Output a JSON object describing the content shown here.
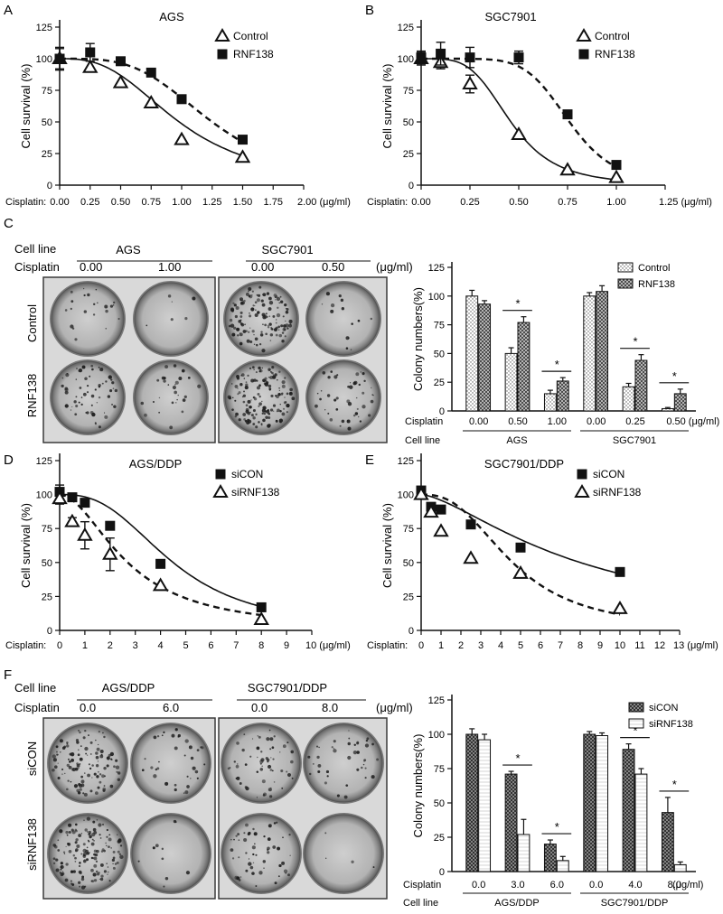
{
  "colors": {
    "ink": "#111111",
    "dish_outer": "#6f6f6f",
    "dish_mid": "#9a9a9a",
    "dish_inner": "#b9b9b9",
    "frame": "#3a3a3a"
  },
  "panels": {
    "A": {
      "letter": "A",
      "title": "AGS",
      "ylabel": "Cell survival  (%)",
      "x_prefix": "Cisplatin:",
      "yticks": [
        "0",
        "25",
        "50",
        "75",
        "100",
        "125"
      ],
      "xticks": [
        "0.00",
        "0.25",
        "0.50",
        "0.75",
        "1.00",
        "1.25",
        "1.50",
        "1.75",
        "2.00 (μg/ml)"
      ],
      "legend": [
        "Control",
        "RNF138"
      ]
    },
    "B": {
      "letter": "B",
      "title": "SGC7901",
      "ylabel": "Cell survival  (%)",
      "x_prefix": "Cisplatin:",
      "yticks": [
        "0",
        "25",
        "50",
        "75",
        "100",
        "125"
      ],
      "xticks": [
        "0.00",
        "0.25",
        "0.50",
        "0.75",
        "1.00",
        "1.25 (μg/ml)"
      ],
      "legend": [
        "Control",
        "RNF138"
      ]
    },
    "C": {
      "letter": "C",
      "cell_line_label": "Cell line",
      "cisplatin_label": "Cisplatin",
      "unit": "(μg/ml)",
      "groups": [
        {
          "name": "AGS",
          "doses": [
            "0.00",
            "1.00"
          ]
        },
        {
          "name": "SGC7901",
          "doses": [
            "0.00",
            "0.50"
          ]
        }
      ],
      "row_labels": [
        "Control",
        "RNF138"
      ],
      "bar": {
        "ylabel": "Colony numbers(%)",
        "yticks": [
          "0",
          "25",
          "50",
          "75",
          "100",
          "125"
        ],
        "legend": [
          "Control",
          "RNF138"
        ],
        "cisplatin_label": "Cisplatin",
        "cell_line_label": "Cell line",
        "doses": [
          "0.00",
          "0.50",
          "1.00",
          "0.00",
          "0.25",
          "0.50 (μg/ml)"
        ],
        "groups": [
          "AGS",
          "SGC7901"
        ],
        "star": "*"
      }
    },
    "D": {
      "letter": "D",
      "title": "AGS/DDP",
      "ylabel": "Cell survival  (%)",
      "x_prefix": "Cisplatin:",
      "yticks": [
        "0",
        "25",
        "50",
        "75",
        "100",
        "125"
      ],
      "xticks": [
        "0",
        "1",
        "2",
        "3",
        "4",
        "5",
        "6",
        "7",
        "8",
        "9",
        "10 (μg/ml)"
      ],
      "legend": [
        "siCON",
        "siRNF138"
      ]
    },
    "E": {
      "letter": "E",
      "title": "SGC7901/DDP",
      "ylabel": "Cell survival  (%)",
      "x_prefix": "Cisplatin:",
      "yticks": [
        "0",
        "25",
        "50",
        "75",
        "100",
        "125"
      ],
      "xticks": [
        "0",
        "1",
        "2",
        "3",
        "4",
        "5",
        "6",
        "7",
        "8",
        "9",
        "10",
        "11",
        "12",
        "13 (μg/ml)"
      ],
      "legend": [
        "siCON",
        "siRNF138"
      ]
    },
    "F": {
      "letter": "F",
      "cell_line_label": "Cell line",
      "cisplatin_label": "Cisplatin",
      "unit": "(μg/ml)",
      "groups": [
        {
          "name": "AGS/DDP",
          "doses": [
            "0.0",
            "6.0"
          ]
        },
        {
          "name": "SGC7901/DDP",
          "doses": [
            "0.0",
            "8.0"
          ]
        }
      ],
      "row_labels": [
        "siCON",
        "siRNF138"
      ],
      "bar": {
        "ylabel": "Colony numbers(%)",
        "yticks": [
          "0",
          "25",
          "50",
          "75",
          "100",
          "125"
        ],
        "legend": [
          "siCON",
          "siRNF138"
        ],
        "cisplatin_label": "Cisplatin",
        "cell_line_label": "Cell line",
        "doses": [
          "0.0",
          "3.0",
          "6.0",
          "0.0",
          "4.0",
          "8.0"
        ],
        "unit": "(μg/ml)",
        "groups": [
          "AGS/DDP",
          "SGC7901/DDP"
        ],
        "star": "*"
      }
    }
  },
  "chart_data": [
    {
      "type": "scatter",
      "panel": "A",
      "title": "AGS",
      "xlabel": "Cisplatin (μg/ml)",
      "ylabel": "Cell survival  (%)",
      "xlim": [
        0,
        2
      ],
      "ylim": [
        0,
        125
      ],
      "series": [
        {
          "name": "Control",
          "marker": "triangle-open",
          "fit": "solid",
          "points": [
            [
              0,
              100,
              8
            ],
            [
              0.25,
              93,
              0
            ],
            [
              0.5,
              81,
              0
            ],
            [
              0.75,
              65,
              0
            ],
            [
              1.0,
              36,
              0
            ],
            [
              1.5,
              22,
              0
            ]
          ],
          "fit_curve": {
            "top": 100,
            "bottom": 0,
            "ic50": 0.98,
            "hill": 2.8
          }
        },
        {
          "name": "RNF138",
          "marker": "square-filled",
          "fit": "dashed",
          "points": [
            [
              0,
              100,
              9
            ],
            [
              0.25,
              105,
              7
            ],
            [
              0.5,
              98,
              0
            ],
            [
              0.75,
              89,
              0
            ],
            [
              1.0,
              68,
              0
            ],
            [
              1.5,
              36,
              0
            ]
          ],
          "fit_curve": {
            "top": 100,
            "bottom": 0,
            "ic50": 1.25,
            "hill": 3.6
          }
        }
      ]
    },
    {
      "type": "scatter",
      "panel": "B",
      "title": "SGC7901",
      "xlabel": "Cisplatin (μg/ml)",
      "ylabel": "Cell survival  (%)",
      "xlim": [
        0,
        1.25
      ],
      "ylim": [
        0,
        125
      ],
      "series": [
        {
          "name": "Control",
          "marker": "triangle-open",
          "fit": "solid",
          "points": [
            [
              0,
              100,
              5
            ],
            [
              0.1,
              97,
              5
            ],
            [
              0.25,
              80,
              7
            ],
            [
              0.5,
              40,
              0
            ],
            [
              0.75,
              12,
              0
            ],
            [
              1.0,
              6,
              0
            ]
          ],
          "fit_curve": {
            "top": 100,
            "bottom": 0,
            "ic50": 0.46,
            "hill": 4.0
          }
        },
        {
          "name": "RNF138",
          "marker": "square-filled",
          "fit": "dashed",
          "points": [
            [
              0,
              101,
              5
            ],
            [
              0.1,
              104,
              9
            ],
            [
              0.25,
              101,
              8
            ],
            [
              0.5,
              101,
              5
            ],
            [
              0.75,
              56,
              0
            ],
            [
              1.0,
              16,
              0
            ]
          ],
          "fit_curve": {
            "top": 100,
            "bottom": 0,
            "ic50": 0.76,
            "hill": 6.5
          }
        }
      ]
    },
    {
      "type": "bar",
      "panel": "C",
      "ylabel": "Colony numbers(%)",
      "ylim": [
        0,
        125
      ],
      "categories": [
        "AGS 0.00",
        "AGS 0.50",
        "AGS 1.00",
        "SGC7901 0.00",
        "SGC7901 0.25",
        "SGC7901 0.50"
      ],
      "series": [
        {
          "name": "Control",
          "values": [
            100,
            50,
            15,
            100,
            21,
            2
          ],
          "errors": [
            5,
            5,
            3,
            3,
            3,
            1
          ]
        },
        {
          "name": "RNF138",
          "values": [
            93,
            77,
            26,
            104,
            44,
            15
          ],
          "errors": [
            3,
            5,
            3,
            5,
            5,
            4
          ]
        }
      ],
      "significance": [
        1,
        2,
        4,
        5
      ]
    },
    {
      "type": "scatter",
      "panel": "D",
      "title": "AGS/DDP",
      "xlabel": "Cisplatin (μg/ml)",
      "ylabel": "Cell survival  (%)",
      "xlim": [
        0,
        10
      ],
      "ylim": [
        0,
        125
      ],
      "series": [
        {
          "name": "siCON",
          "marker": "square-filled",
          "fit": "solid",
          "points": [
            [
              0,
              102,
              5
            ],
            [
              0.5,
              98,
              0
            ],
            [
              1,
              94,
              0
            ],
            [
              2,
              77,
              0
            ],
            [
              4,
              49,
              0
            ],
            [
              8,
              17,
              0
            ]
          ],
          "fit_curve": {
            "top": 100,
            "bottom": 0,
            "ic50": 4.5,
            "hill": 2.7
          }
        },
        {
          "name": "siRNF138",
          "marker": "triangle-open",
          "fit": "dashed",
          "points": [
            [
              0,
              97,
              4
            ],
            [
              0.5,
              80,
              3
            ],
            [
              1,
              70,
              10
            ],
            [
              2,
              56,
              12
            ],
            [
              4,
              33,
              0
            ],
            [
              8,
              8,
              0
            ]
          ],
          "fit_curve": {
            "top": 100,
            "bottom": 0,
            "ic50": 2.7,
            "hill": 1.9
          }
        }
      ]
    },
    {
      "type": "scatter",
      "panel": "E",
      "title": "SGC7901/DDP",
      "xlabel": "Cisplatin (μg/ml)",
      "ylabel": "Cell survival  (%)",
      "xlim": [
        0,
        13
      ],
      "ylim": [
        0,
        125
      ],
      "series": [
        {
          "name": "siCON",
          "marker": "square-filled",
          "fit": "solid",
          "points": [
            [
              0,
              103,
              3
            ],
            [
              0.5,
              91,
              0
            ],
            [
              1,
              89,
              0
            ],
            [
              2.5,
              78,
              0
            ],
            [
              5,
              61,
              0
            ],
            [
              10,
              43,
              0
            ]
          ],
          "fit_curve": {
            "top": 100,
            "bottom": 0,
            "ic50": 8.0,
            "hill": 1.5
          }
        },
        {
          "name": "siRNF138",
          "marker": "triangle-open",
          "fit": "dashed",
          "points": [
            [
              0,
              100,
              3
            ],
            [
              0.5,
              87,
              0
            ],
            [
              1,
              73,
              0
            ],
            [
              2.5,
              53,
              0
            ],
            [
              5,
              42,
              0
            ],
            [
              10,
              16,
              0
            ]
          ],
          "fit_curve": {
            "top": 100,
            "bottom": 0,
            "ic50": 4.6,
            "hill": 2.6
          }
        }
      ]
    },
    {
      "type": "bar",
      "panel": "F",
      "ylabel": "Colony numbers(%)",
      "ylim": [
        0,
        125
      ],
      "categories": [
        "AGS/DDP 0.0",
        "AGS/DDP 3.0",
        "AGS/DDP 6.0",
        "SGC7901/DDP 0.0",
        "SGC7901/DDP 4.0",
        "SGC7901/DDP 8.0"
      ],
      "series": [
        {
          "name": "siCON",
          "values": [
            100,
            71,
            20,
            100,
            89,
            43
          ],
          "errors": [
            4,
            2,
            3,
            2,
            4,
            11
          ]
        },
        {
          "name": "siRNF138",
          "values": [
            96,
            27,
            8,
            99,
            71,
            5
          ],
          "errors": [
            4,
            11,
            3,
            2,
            4,
            2
          ]
        }
      ],
      "significance": [
        1,
        2,
        4,
        5
      ]
    }
  ]
}
